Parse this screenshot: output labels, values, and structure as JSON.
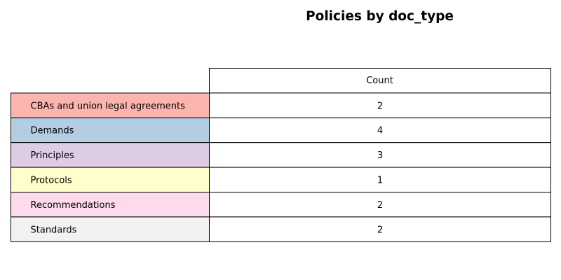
{
  "chart_data": {
    "type": "table",
    "title": "Policies by doc_type",
    "column_header": "Count",
    "rows": [
      {
        "label": "CBAs and union legal agreements",
        "value": 2,
        "color": "#fbb4ae"
      },
      {
        "label": "Demands",
        "value": 4,
        "color": "#b3cde3"
      },
      {
        "label": "Principles",
        "value": 3,
        "color": "#decbe4"
      },
      {
        "label": "Protocols",
        "value": 1,
        "color": "#ffffcc"
      },
      {
        "label": "Recommendations",
        "value": 2,
        "color": "#fddaec"
      },
      {
        "label": "Standards",
        "value": 2,
        "color": "#f2f2f2"
      }
    ]
  }
}
